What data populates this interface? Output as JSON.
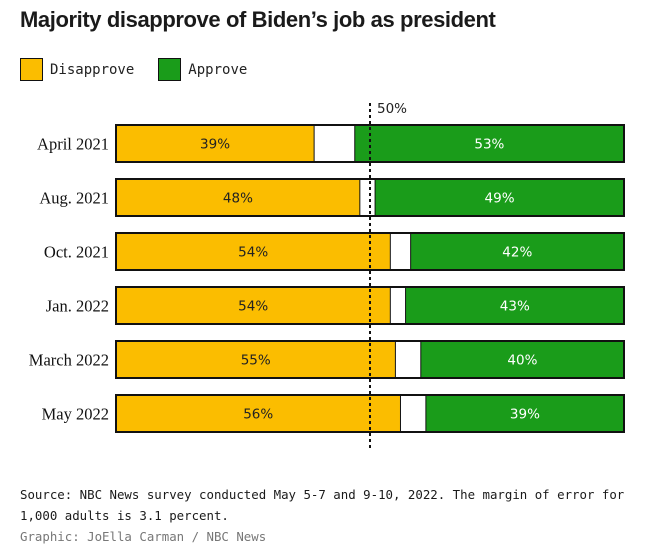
{
  "title": "Majority disapprove of Biden’s job as president",
  "legend": [
    {
      "label": "Disapprove",
      "color": "#fbbd00"
    },
    {
      "label": "Approve",
      "color": "#1a9c1a"
    }
  ],
  "chart_data": {
    "type": "bar",
    "orientation": "horizontal-stacked",
    "categories": [
      "April 2021",
      "Aug. 2021",
      "Oct. 2021",
      "Jan. 2022",
      "March 2022",
      "May 2022"
    ],
    "series": [
      {
        "name": "Disapprove",
        "values": [
          39,
          48,
          54,
          54,
          55,
          56
        ],
        "labels": [
          "39%",
          "48%",
          "54%",
          "54%",
          "55%",
          "56%"
        ],
        "color": "#fbbd00"
      },
      {
        "name": "Approve",
        "values": [
          53,
          49,
          42,
          43,
          40,
          39
        ],
        "labels": [
          "53%",
          "49%",
          "42%",
          "43%",
          "40%",
          "39%"
        ],
        "color": "#1a9c1a"
      }
    ],
    "xlim": [
      0,
      100
    ],
    "reference_line": {
      "value": 50,
      "label": "50%"
    }
  },
  "footer": {
    "source": "Source: NBC News survey conducted May 5-7 and 9-10, 2022. The margin of error for 1,000 adults is 3.1 percent.",
    "credit": "Graphic: JoElla Carman / NBC News"
  }
}
